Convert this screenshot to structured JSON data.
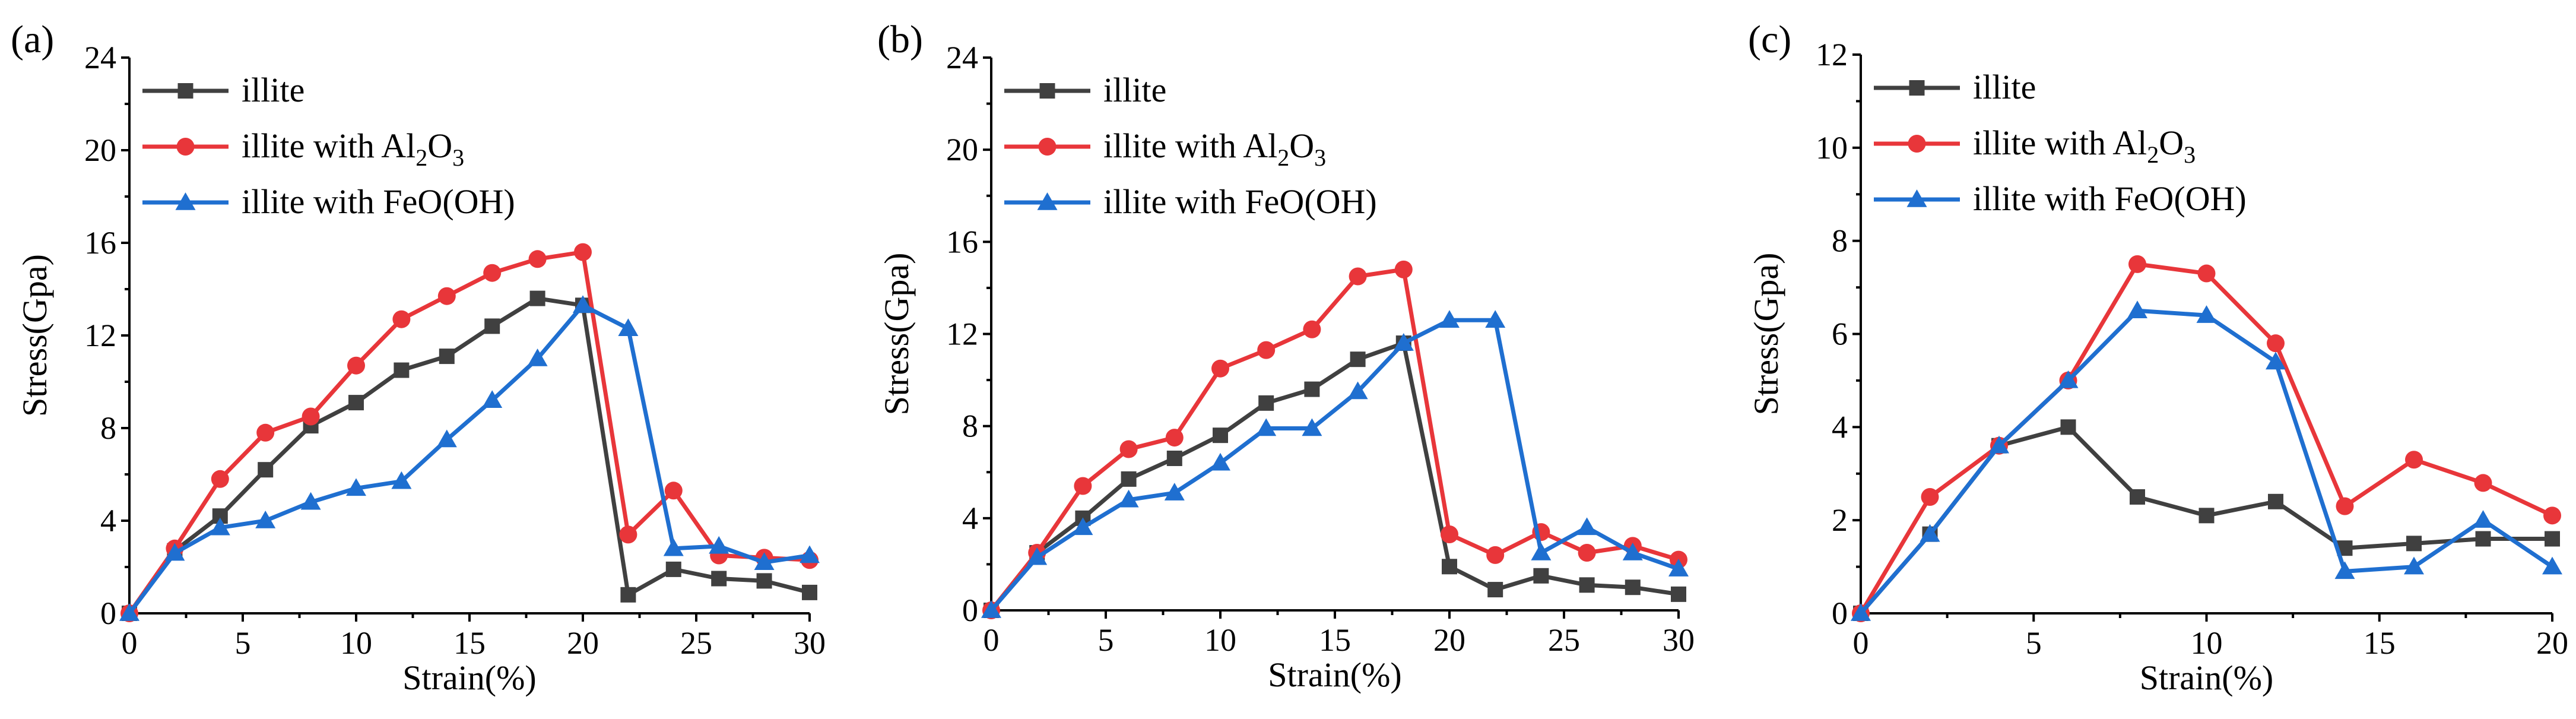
{
  "chart_data": [
    {
      "type": "line",
      "panel_label": "(a)",
      "xlabel": "Strain(%)",
      "ylabel": "Stress(Gpa)",
      "xlim": [
        0,
        30
      ],
      "ylim": [
        0,
        24
      ],
      "xticks": [
        0,
        5,
        10,
        15,
        20,
        25,
        30
      ],
      "yticks": [
        0,
        4,
        8,
        12,
        16,
        20,
        24
      ],
      "xtick_labels": [
        "0",
        "5",
        "10",
        "15",
        "20",
        "25",
        "30"
      ],
      "ytick_labels": [
        "0",
        "4",
        "8",
        "12",
        "16",
        "20",
        "24"
      ],
      "legend_position": "top-left",
      "x": [
        0,
        2,
        4,
        6,
        8,
        10,
        12,
        14,
        16,
        18,
        20,
        22,
        24,
        26,
        28,
        30
      ],
      "series": [
        {
          "name": "illite",
          "label_main": "illite",
          "label_sub": "",
          "label_tail": "",
          "marker": "square",
          "color": "#404040",
          "values": [
            0,
            2.7,
            4.2,
            6.2,
            8.1,
            9.1,
            10.5,
            11.1,
            12.4,
            13.6,
            13.3,
            0.8,
            1.9,
            1.5,
            1.4,
            0.9
          ]
        },
        {
          "name": "illite with Al2O3",
          "label_main": "illite with Al",
          "label_sub": "2",
          "label_tail": "O",
          "label_sub2": "3",
          "marker": "circle",
          "color": "#e8363a",
          "values": [
            0,
            2.8,
            5.8,
            7.8,
            8.5,
            10.7,
            12.7,
            13.7,
            14.7,
            15.3,
            15.6,
            3.4,
            5.3,
            2.5,
            2.4,
            2.3
          ]
        },
        {
          "name": "illite with FeO(OH)",
          "label_main": "illite with FeO(OH)",
          "label_sub": "",
          "label_tail": "",
          "marker": "triangle",
          "color": "#1f6fd0",
          "values": [
            0,
            2.6,
            3.7,
            4.0,
            4.8,
            5.4,
            5.7,
            7.5,
            9.2,
            11.0,
            13.3,
            12.3,
            2.8,
            2.9,
            2.2,
            2.5
          ]
        }
      ]
    },
    {
      "type": "line",
      "panel_label": "(b)",
      "xlabel": "Strain(%)",
      "ylabel": "Stress(Gpa)",
      "xlim": [
        0,
        30
      ],
      "ylim": [
        0,
        24
      ],
      "xticks": [
        0,
        5,
        10,
        15,
        20,
        25,
        30
      ],
      "yticks": [
        0,
        4,
        8,
        12,
        16,
        20,
        24
      ],
      "xtick_labels": [
        "0",
        "5",
        "10",
        "15",
        "20",
        "25",
        "30"
      ],
      "ytick_labels": [
        "0",
        "4",
        "8",
        "12",
        "16",
        "20",
        "24"
      ],
      "legend_position": "top-left",
      "x": [
        0,
        2,
        4,
        6,
        8,
        10,
        12,
        14,
        16,
        18,
        20,
        22,
        24,
        26,
        28,
        30
      ],
      "series": [
        {
          "name": "illite",
          "label_main": "illite",
          "label_sub": "",
          "label_tail": "",
          "marker": "square",
          "color": "#404040",
          "values": [
            0,
            2.5,
            4.0,
            5.7,
            6.6,
            7.6,
            9.0,
            9.6,
            10.9,
            11.6,
            1.9,
            0.9,
            1.5,
            1.1,
            1.0,
            0.7
          ]
        },
        {
          "name": "illite with Al2O3",
          "label_main": "illite with Al",
          "label_sub": "2",
          "label_tail": "O",
          "label_sub2": "3",
          "marker": "circle",
          "color": "#e8363a",
          "values": [
            0,
            2.5,
            5.4,
            7.0,
            7.5,
            10.5,
            11.3,
            12.2,
            14.5,
            14.8,
            3.3,
            2.4,
            3.4,
            2.5,
            2.8,
            2.2
          ]
        },
        {
          "name": "illite with FeO(OH)",
          "label_main": "illite with FeO(OH)",
          "label_sub": "",
          "label_tail": "",
          "marker": "triangle",
          "color": "#1f6fd0",
          "values": [
            0,
            2.3,
            3.6,
            4.8,
            5.1,
            6.4,
            7.9,
            7.9,
            9.5,
            11.6,
            12.6,
            12.6,
            2.5,
            3.6,
            2.5,
            1.8
          ]
        }
      ]
    },
    {
      "type": "line",
      "panel_label": "(c)",
      "xlabel": "Strain(%)",
      "ylabel": "Stress(Gpa)",
      "xlim": [
        0,
        20
      ],
      "ylim": [
        0,
        12
      ],
      "xticks": [
        0,
        5,
        10,
        15,
        20
      ],
      "yticks": [
        0,
        2,
        4,
        6,
        8,
        10,
        12
      ],
      "xtick_labels": [
        "0",
        "5",
        "10",
        "15",
        "20"
      ],
      "ytick_labels": [
        "0",
        "2",
        "4",
        "6",
        "8",
        "10",
        "12"
      ],
      "legend_position": "top-left",
      "x": [
        0,
        2,
        4,
        6,
        8,
        10,
        12,
        14,
        16,
        18,
        20
      ],
      "series": [
        {
          "name": "illite",
          "label_main": "illite",
          "label_sub": "",
          "label_tail": "",
          "marker": "square",
          "color": "#404040",
          "values": [
            0,
            1.7,
            3.6,
            4.0,
            2.5,
            2.1,
            2.4,
            1.4,
            1.5,
            1.6,
            1.6
          ]
        },
        {
          "name": "illite with Al2O3",
          "label_main": "illite with Al",
          "label_sub": "2",
          "label_tail": "O",
          "label_sub2": "3",
          "marker": "circle",
          "color": "#e8363a",
          "values": [
            0,
            2.5,
            3.6,
            5.0,
            7.5,
            7.3,
            5.8,
            2.3,
            3.3,
            2.8,
            2.1
          ]
        },
        {
          "name": "illite with FeO(OH)",
          "label_main": "illite with FeO(OH)",
          "label_sub": "",
          "label_tail": "",
          "marker": "triangle",
          "color": "#1f6fd0",
          "values": [
            0,
            1.7,
            3.6,
            5.0,
            6.5,
            6.4,
            5.4,
            0.9,
            1.0,
            2.0,
            1.0
          ]
        }
      ]
    }
  ]
}
